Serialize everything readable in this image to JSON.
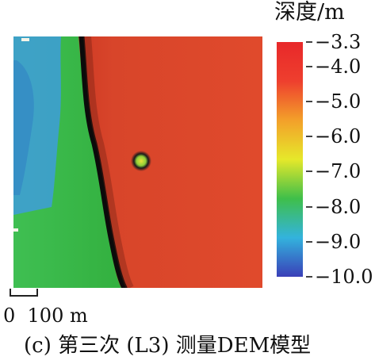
{
  "legend": {
    "title": "深度/m",
    "ticks": [
      {
        "label": "−3.3",
        "value": -3.3
      },
      {
        "label": "−4.0",
        "value": -4.0
      },
      {
        "label": "−5.0",
        "value": -5.0
      },
      {
        "label": "−6.0",
        "value": -6.0
      },
      {
        "label": "−7.0",
        "value": -7.0
      },
      {
        "label": "−8.0",
        "value": -8.0
      },
      {
        "label": "−9.0",
        "value": -9.0
      },
      {
        "label": "−10.0",
        "value": -10.0
      }
    ],
    "min": -10.0,
    "max": -3.3,
    "colors": [
      "#3a3fb8",
      "#33b3dd",
      "#3fbf4a",
      "#e6e82a",
      "#f3a02a",
      "#ee3f2e",
      "#e8282a"
    ]
  },
  "scale_bar": {
    "label": "0  100 m"
  },
  "caption": "(c) 第三次 (L3) 测量DEM模型",
  "map_colors": {
    "shallow": "#d63a26",
    "deep_green": "#39b946",
    "deep_blue": "#3a9ad6",
    "scarp": "#0b0b0b"
  }
}
